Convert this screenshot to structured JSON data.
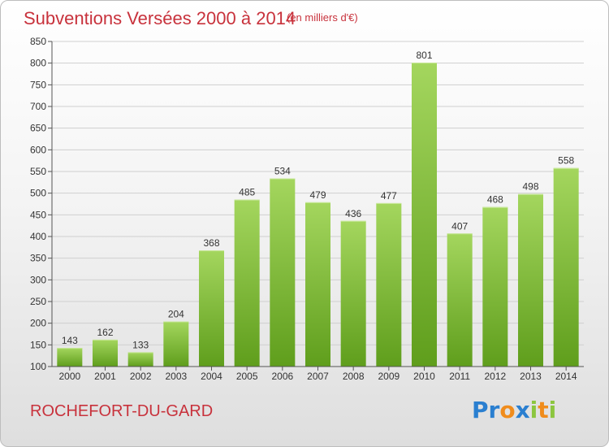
{
  "header": {
    "title": "Subventions Versées 2000 à 2014",
    "subtitle": "(en milliers d'€)"
  },
  "footer": {
    "city": "ROCHEFORT-DU-GARD",
    "logo_letters": [
      {
        "char": "P",
        "color": "#2a7fd0"
      },
      {
        "char": "r",
        "color": "#2a7fd0"
      },
      {
        "char": "o",
        "color": "#f08c1c"
      },
      {
        "char": "x",
        "color": "#2a7fd0"
      },
      {
        "char": "i",
        "color": "#8cc63f"
      },
      {
        "char": "t",
        "color": "#f08c1c"
      },
      {
        "char": "i",
        "color": "#8cc63f"
      }
    ]
  },
  "colors": {
    "bar_light": "#a4d65e",
    "bar_dark": "#5f9e1c",
    "grid": "#cfcfcf",
    "text_accent": "#c8323c"
  },
  "chart_data": {
    "type": "bar",
    "title": "Subventions Versées 2000 à 2014",
    "subtitle": "(en milliers d'€)",
    "categories": [
      "2000",
      "2001",
      "2002",
      "2003",
      "2004",
      "2005",
      "2006",
      "2007",
      "2008",
      "2009",
      "2010",
      "2011",
      "2012",
      "2013",
      "2014"
    ],
    "values": [
      143,
      162,
      133,
      204,
      368,
      485,
      534,
      479,
      436,
      477,
      801,
      407,
      468,
      498,
      558
    ],
    "ylim": [
      100,
      850
    ],
    "yticks": [
      100,
      150,
      200,
      250,
      300,
      350,
      400,
      450,
      500,
      550,
      600,
      650,
      700,
      750,
      800,
      850
    ],
    "grid": true,
    "xlabel": "",
    "ylabel": ""
  }
}
